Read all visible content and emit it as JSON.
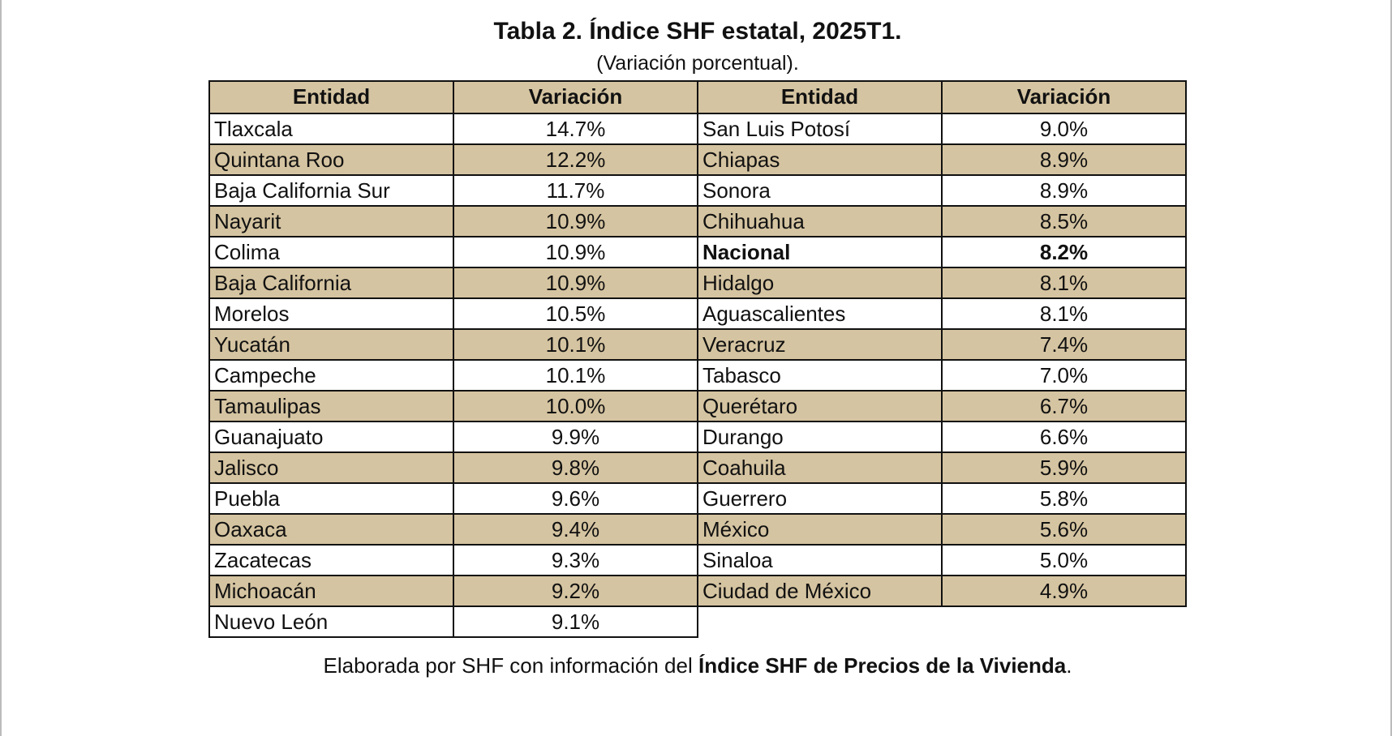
{
  "header": {
    "title": "Tabla 2. Índice SHF estatal, 2025T1.",
    "subtitle": "(Variación porcentual)."
  },
  "table": {
    "headers": [
      "Entidad",
      "Variación",
      "Entidad",
      "Variación"
    ],
    "rows": [
      [
        {
          "text": "Tlaxcala"
        },
        {
          "text": "14.7%"
        },
        {
          "text": "San Luis Potosí"
        },
        {
          "text": "9.0%"
        }
      ],
      [
        {
          "text": "Quintana Roo"
        },
        {
          "text": "12.2%"
        },
        {
          "text": "Chiapas"
        },
        {
          "text": "8.9%"
        }
      ],
      [
        {
          "text": "Baja California Sur"
        },
        {
          "text": "11.7%"
        },
        {
          "text": "Sonora"
        },
        {
          "text": "8.9%"
        }
      ],
      [
        {
          "text": "Nayarit"
        },
        {
          "text": "10.9%"
        },
        {
          "text": "Chihuahua"
        },
        {
          "text": "8.5%"
        }
      ],
      [
        {
          "text": "Colima"
        },
        {
          "text": "10.9%"
        },
        {
          "text": "Nacional",
          "bold": true
        },
        {
          "text": "8.2%",
          "bold": true
        }
      ],
      [
        {
          "text": "Baja California"
        },
        {
          "text": "10.9%"
        },
        {
          "text": "Hidalgo"
        },
        {
          "text": "8.1%"
        }
      ],
      [
        {
          "text": "Morelos"
        },
        {
          "text": "10.5%"
        },
        {
          "text": "Aguascalientes"
        },
        {
          "text": "8.1%"
        }
      ],
      [
        {
          "text": "Yucatán"
        },
        {
          "text": "10.1%"
        },
        {
          "text": "Veracruz"
        },
        {
          "text": "7.4%"
        }
      ],
      [
        {
          "text": "Campeche"
        },
        {
          "text": "10.1%"
        },
        {
          "text": "Tabasco"
        },
        {
          "text": "7.0%"
        }
      ],
      [
        {
          "text": "Tamaulipas"
        },
        {
          "text": "10.0%"
        },
        {
          "text": "Querétaro"
        },
        {
          "text": "6.7%"
        }
      ],
      [
        {
          "text": "Guanajuato"
        },
        {
          "text": "9.9%"
        },
        {
          "text": "Durango"
        },
        {
          "text": "6.6%"
        }
      ],
      [
        {
          "text": "Jalisco"
        },
        {
          "text": "9.8%"
        },
        {
          "text": "Coahuila"
        },
        {
          "text": "5.9%"
        }
      ],
      [
        {
          "text": "Puebla"
        },
        {
          "text": "9.6%"
        },
        {
          "text": "Guerrero"
        },
        {
          "text": "5.8%"
        }
      ],
      [
        {
          "text": "Oaxaca"
        },
        {
          "text": "9.4%"
        },
        {
          "text": "México"
        },
        {
          "text": "5.6%"
        }
      ],
      [
        {
          "text": "Zacatecas"
        },
        {
          "text": "9.3%"
        },
        {
          "text": "Sinaloa"
        },
        {
          "text": "5.0%"
        }
      ],
      [
        {
          "text": "Michoacán"
        },
        {
          "text": "9.2%"
        },
        {
          "text": "Ciudad de México"
        },
        {
          "text": "4.9%"
        }
      ],
      [
        {
          "text": "Nuevo León"
        },
        {
          "text": "9.1%"
        }
      ]
    ]
  },
  "footer": [
    {
      "text": "Elaborada por SHF con información del "
    },
    {
      "text": "Índice SHF de Precios de la Vivienda",
      "bold": true
    },
    {
      "text": "."
    }
  ]
}
